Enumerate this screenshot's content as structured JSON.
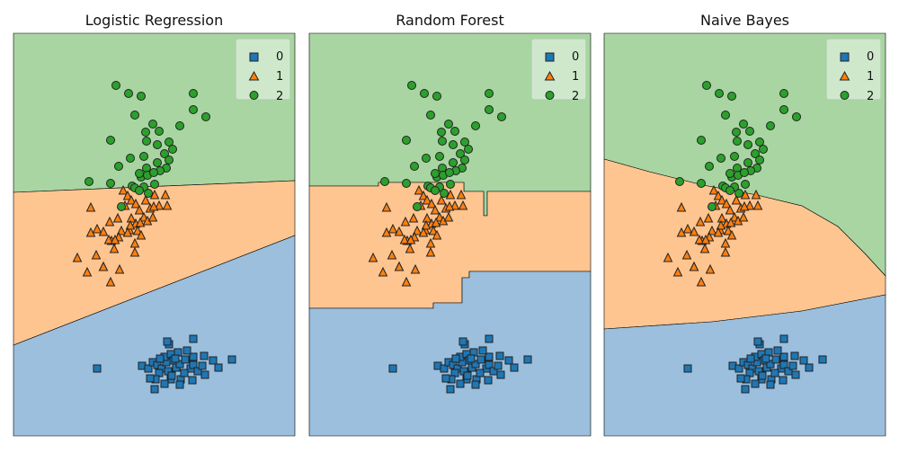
{
  "chart_data": [
    {
      "type": "scatter",
      "title": "Logistic Regression",
      "xlabel": "",
      "ylabel": "",
      "xlim": [
        0,
        313
      ],
      "ylim": [
        0,
        448
      ],
      "grid": false,
      "legend": "top-right",
      "legend_entries": [
        "0",
        "1",
        "2"
      ],
      "regions": [
        {
          "class": "2",
          "polygon": [
            [
              0,
              0
            ],
            [
              313,
              0
            ],
            [
              313,
              164
            ],
            [
              0,
              177
            ]
          ]
        },
        {
          "class": "1",
          "polygon": [
            [
              0,
              177
            ],
            [
              313,
              164
            ],
            [
              313,
              225
            ],
            [
              0,
              347
            ]
          ]
        },
        {
          "class": "0",
          "polygon": [
            [
              0,
              347
            ],
            [
              313,
              225
            ],
            [
              313,
              448
            ],
            [
              0,
              448
            ]
          ]
        }
      ]
    },
    {
      "type": "scatter",
      "title": "Random Forest",
      "xlabel": "",
      "ylabel": "",
      "xlim": [
        0,
        313
      ],
      "ylim": [
        0,
        448
      ],
      "grid": false,
      "legend": "top-right",
      "legend_entries": [
        "0",
        "1",
        "2"
      ],
      "regions": [
        {
          "class": "2",
          "polygon": [
            [
              0,
              0
            ],
            [
              313,
              0
            ],
            [
              313,
              176
            ],
            [
              198,
              176
            ],
            [
              198,
              203
            ],
            [
              194,
              203
            ],
            [
              194,
              176
            ],
            [
              172,
              176
            ],
            [
              172,
              166
            ],
            [
              77,
              166
            ],
            [
              77,
              170
            ],
            [
              0,
              170
            ]
          ]
        },
        {
          "class": "1",
          "polygon": [
            [
              0,
              170
            ],
            [
              77,
              170
            ],
            [
              77,
              166
            ],
            [
              172,
              166
            ],
            [
              172,
              176
            ],
            [
              194,
              176
            ],
            [
              194,
              203
            ],
            [
              198,
              203
            ],
            [
              198,
              176
            ],
            [
              313,
              176
            ],
            [
              313,
              265
            ],
            [
              178,
              265
            ],
            [
              178,
              272
            ],
            [
              170,
              272
            ],
            [
              170,
              300
            ],
            [
              138,
              300
            ],
            [
              138,
              306
            ],
            [
              0,
              306
            ]
          ]
        },
        {
          "class": "0",
          "polygon": [
            [
              0,
              306
            ],
            [
              138,
              306
            ],
            [
              138,
              300
            ],
            [
              170,
              300
            ],
            [
              170,
              272
            ],
            [
              178,
              272
            ],
            [
              178,
              265
            ],
            [
              313,
              265
            ],
            [
              313,
              448
            ],
            [
              0,
              448
            ]
          ]
        }
      ]
    },
    {
      "type": "scatter",
      "title": "Naive Bayes",
      "xlabel": "",
      "ylabel": "",
      "xlim": [
        0,
        313
      ],
      "ylim": [
        0,
        448
      ],
      "grid": false,
      "legend": "top-right",
      "legend_entries": [
        "0",
        "1",
        "2"
      ],
      "regions": [
        {
          "class": "2",
          "polygon": [
            [
              0,
              0
            ],
            [
              313,
              0
            ],
            [
              313,
              270
            ],
            [
              290,
              245
            ],
            [
              260,
              215
            ],
            [
              220,
              192
            ],
            [
              170,
              180
            ],
            [
              110,
              169
            ],
            [
              50,
              154
            ],
            [
              0,
              140
            ]
          ]
        },
        {
          "class": "1",
          "polygon": [
            [
              0,
              140
            ],
            [
              50,
              154
            ],
            [
              110,
              169
            ],
            [
              170,
              180
            ],
            [
              220,
              192
            ],
            [
              260,
              215
            ],
            [
              290,
              245
            ],
            [
              313,
              270
            ],
            [
              313,
              291
            ],
            [
              220,
              309
            ],
            [
              120,
              321
            ],
            [
              0,
              329
            ]
          ]
        },
        {
          "class": "0",
          "polygon": [
            [
              0,
              329
            ],
            [
              120,
              321
            ],
            [
              220,
              309
            ],
            [
              313,
              291
            ],
            [
              313,
              448
            ],
            [
              0,
              448
            ]
          ]
        }
      ]
    }
  ],
  "points": {
    "0": [
      [
        93,
        373
      ],
      [
        143,
        370
      ],
      [
        150,
        373
      ],
      [
        155,
        366
      ],
      [
        160,
        369
      ],
      [
        165,
        373
      ],
      [
        170,
        366
      ],
      [
        168,
        360
      ],
      [
        175,
        357
      ],
      [
        178,
        364
      ],
      [
        172,
        376
      ],
      [
        181,
        372
      ],
      [
        185,
        368
      ],
      [
        191,
        363
      ],
      [
        197,
        373
      ],
      [
        200,
        369
      ],
      [
        205,
        376
      ],
      [
        210,
        370
      ],
      [
        200,
        360
      ],
      [
        193,
        353
      ],
      [
        212,
        359
      ],
      [
        183,
        355
      ],
      [
        186,
        385
      ],
      [
        175,
        385
      ],
      [
        162,
        378
      ],
      [
        158,
        385
      ],
      [
        152,
        384
      ],
      [
        157,
        396
      ],
      [
        168,
        390
      ],
      [
        176,
        381
      ],
      [
        190,
        378
      ],
      [
        199,
        386
      ],
      [
        213,
        380
      ],
      [
        222,
        364
      ],
      [
        228,
        372
      ],
      [
        243,
        363
      ],
      [
        173,
        346
      ],
      [
        200,
        340
      ],
      [
        185,
        391
      ],
      [
        171,
        343
      ],
      [
        180,
        362
      ],
      [
        163,
        362
      ]
    ],
    "1": [
      [
        122,
        175
      ],
      [
        127,
        181
      ],
      [
        131,
        186
      ],
      [
        136,
        190
      ],
      [
        140,
        197
      ],
      [
        145,
        205
      ],
      [
        149,
        209
      ],
      [
        152,
        195
      ],
      [
        147,
        186
      ],
      [
        136,
        212
      ],
      [
        124,
        192
      ],
      [
        116,
        206
      ],
      [
        107,
        210
      ],
      [
        100,
        221
      ],
      [
        109,
        231
      ],
      [
        120,
        220
      ],
      [
        131,
        206
      ],
      [
        141,
        211
      ],
      [
        129,
        219
      ],
      [
        117,
        227
      ],
      [
        112,
        240
      ],
      [
        106,
        230
      ],
      [
        93,
        218
      ],
      [
        86,
        194
      ],
      [
        92,
        247
      ],
      [
        100,
        260
      ],
      [
        108,
        277
      ],
      [
        86,
        222
      ],
      [
        82,
        266
      ],
      [
        100,
        260
      ],
      [
        71,
        250
      ],
      [
        135,
        244
      ],
      [
        130,
        214
      ],
      [
        157,
        180
      ],
      [
        162,
        192
      ],
      [
        171,
        192
      ],
      [
        169,
        180
      ],
      [
        155,
        205
      ],
      [
        135,
        234
      ],
      [
        118,
        263
      ],
      [
        127,
        222
      ],
      [
        113,
        230
      ],
      [
        138,
        220
      ],
      [
        142,
        225
      ],
      [
        156,
        193
      ]
    ],
    "2": [
      [
        114,
        58
      ],
      [
        128,
        67
      ],
      [
        142,
        70
      ],
      [
        135,
        91
      ],
      [
        155,
        101
      ],
      [
        147,
        110
      ],
      [
        162,
        109
      ],
      [
        148,
        120
      ],
      [
        160,
        124
      ],
      [
        173,
        121
      ],
      [
        168,
        134
      ],
      [
        177,
        129
      ],
      [
        145,
        137
      ],
      [
        130,
        139
      ],
      [
        108,
        119
      ],
      [
        160,
        144
      ],
      [
        148,
        150
      ],
      [
        142,
        160
      ],
      [
        132,
        170
      ],
      [
        157,
        168
      ],
      [
        149,
        158
      ],
      [
        170,
        150
      ],
      [
        163,
        153
      ],
      [
        150,
        178
      ],
      [
        135,
        172
      ],
      [
        120,
        193
      ],
      [
        108,
        167
      ],
      [
        117,
        148
      ],
      [
        145,
        171
      ],
      [
        140,
        156
      ],
      [
        156,
        155
      ],
      [
        185,
        103
      ],
      [
        200,
        67
      ],
      [
        200,
        85
      ],
      [
        214,
        93
      ],
      [
        140,
        175
      ],
      [
        173,
        141
      ],
      [
        84,
        165
      ]
    ]
  }
}
